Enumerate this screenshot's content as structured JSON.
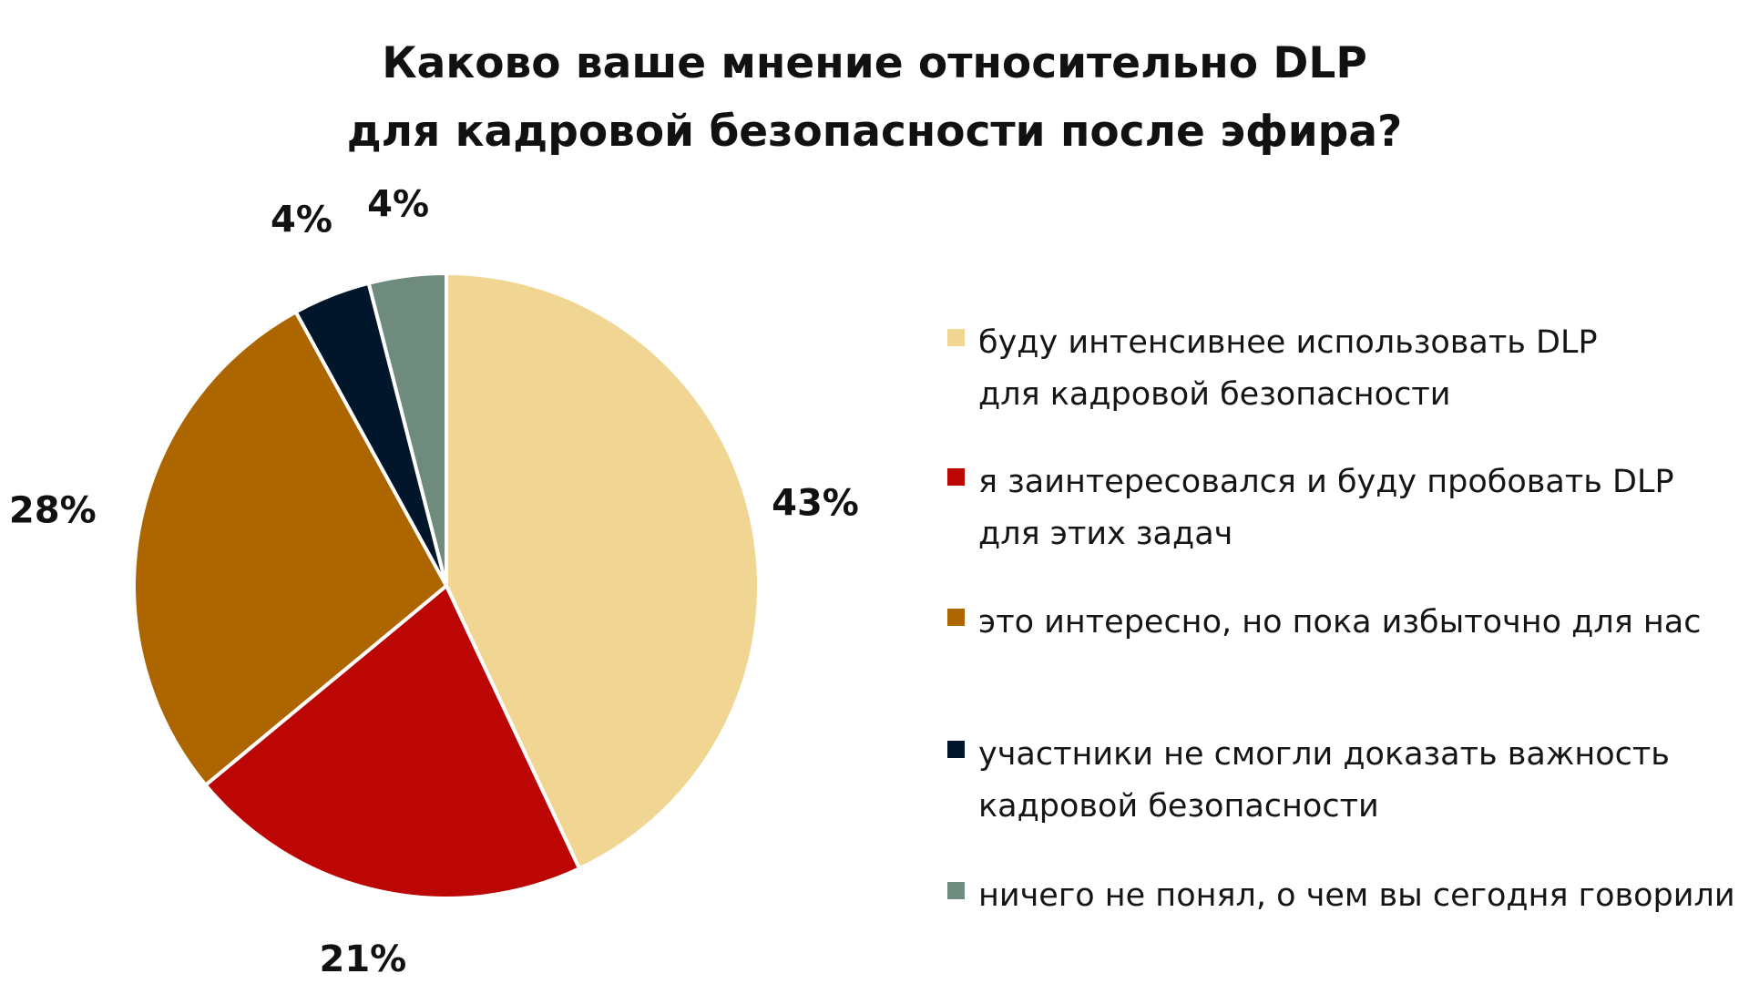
{
  "chart_data": {
    "type": "pie",
    "title_lines": [
      "Каково ваше мнение относительно DLP",
      "для кадровой безопасности после эфира?"
    ],
    "slices": [
      {
        "label": "буду интенсивнее использовать DLP для кадровой безопасности",
        "label_lines": [
          "буду интенсивнее использовать DLP",
          "для кадровой безопасности"
        ],
        "value": 43,
        "value_label": "43%",
        "color": "#f1d693"
      },
      {
        "label": "я заинтересовался и буду пробовать DLP для этих задач",
        "label_lines": [
          "я заинтересовался и буду пробовать DLP",
          "для этих задач"
        ],
        "value": 21,
        "value_label": "21%",
        "color": "#bb0603"
      },
      {
        "label": "это интересно, но пока избыточно для нас",
        "label_lines": [
          "это интересно, но пока избыточно для нас"
        ],
        "value": 28,
        "value_label": "28%",
        "color": "#ad6500"
      },
      {
        "label": "участники не смогли доказать важность кадровой безопасности",
        "label_lines": [
          "участники не смогли доказать важность",
          "кадровой безопасности"
        ],
        "value": 4,
        "value_label": "4%",
        "color": "#01152b"
      },
      {
        "label": "ничего не понял, о чем вы сегодня говорили",
        "label_lines": [
          "ничего не понял, о чем вы сегодня говорили"
        ],
        "value": 4,
        "value_label": "4%",
        "color": "#6e8b7d"
      }
    ],
    "start_angle": "12 o'clock",
    "direction": "clockwise",
    "legend_position": "right"
  }
}
